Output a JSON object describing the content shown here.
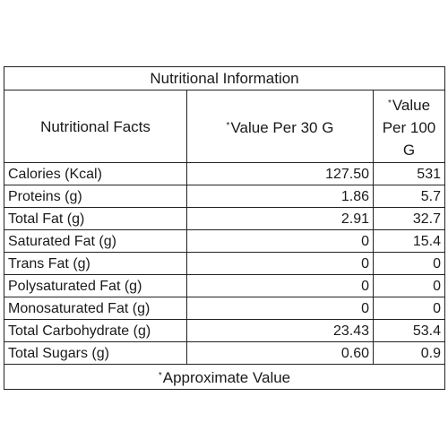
{
  "title": "Nutritional Information",
  "columns": {
    "facts": "Nutritional Facts",
    "per_serving": "Value Per 30 G",
    "per_100": "Value Per 100 G",
    "marker": "*"
  },
  "rows": [
    {
      "label": "Calories (Kcal)",
      "per_serving": "127.50",
      "per_100": "531"
    },
    {
      "label": "Proteins (g)",
      "per_serving": "1.86",
      "per_100": "5.7"
    },
    {
      "label": "Total Fat (g)",
      "per_serving": "2.91",
      "per_100": "32.7"
    },
    {
      "label": "Saturated Fat (g)",
      "per_serving": "0",
      "per_100": "15.4"
    },
    {
      "label": "Trans Fat (g)",
      "per_serving": "0",
      "per_100": "0"
    },
    {
      "label": "Polysaturated Fat (g)",
      "per_serving": "0",
      "per_100": "0"
    },
    {
      "label": "Monosaturated Fat (g)",
      "per_serving": "0",
      "per_100": "0"
    },
    {
      "label": "Total Carbohydrate (g)",
      "per_serving": "23.43",
      "per_100": "53.4"
    },
    {
      "label": "Total Sugars (g)",
      "per_serving": "0.60",
      "per_100": "0.9"
    }
  ],
  "footnote": "Approximate Value"
}
